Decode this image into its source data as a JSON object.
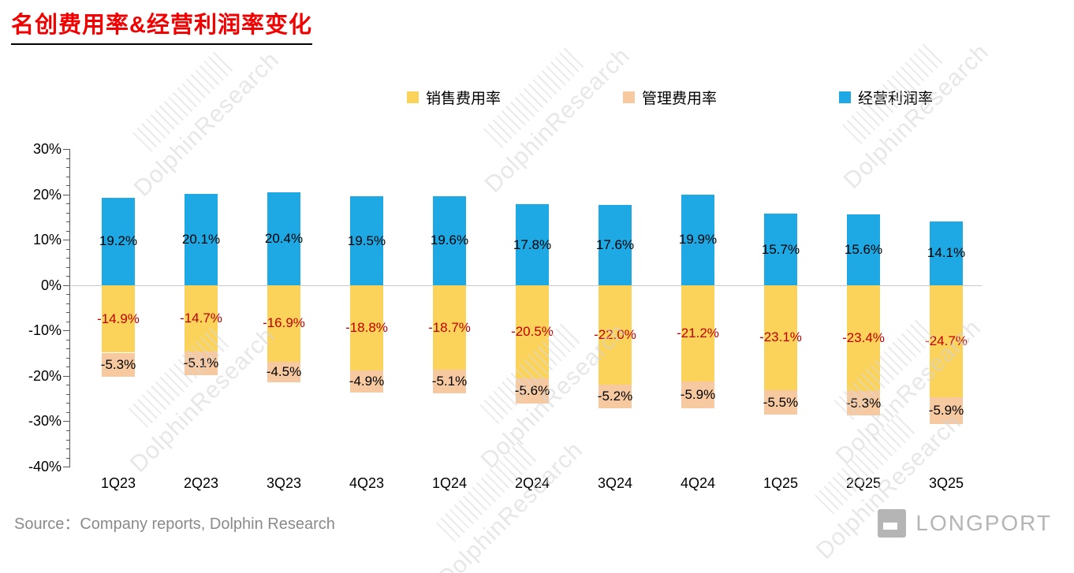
{
  "title": "名创费用率&经营利润率变化",
  "legend": [
    {
      "label": "销售费用率",
      "color": "#FBD35B"
    },
    {
      "label": "管理费用率",
      "color": "#F6C9A0"
    },
    {
      "label": "经营利润率",
      "color": "#1FA9E4"
    }
  ],
  "source": "Source：Company reports, Dolphin Research",
  "watermark_text": "DolphinResearch",
  "logo_text": "LONGPORT",
  "colors": {
    "title": "#F20000",
    "negative_label": "#C00000",
    "positive_label": "#000000",
    "zero_line": "#C9C9C9"
  },
  "chart_data": {
    "type": "bar",
    "stacked": true,
    "title": "名创费用率&经营利润率变化",
    "categories": [
      "1Q23",
      "2Q23",
      "3Q23",
      "4Q23",
      "1Q24",
      "2Q24",
      "3Q24",
      "4Q24",
      "1Q25",
      "2Q25",
      "3Q25"
    ],
    "series": [
      {
        "name": "经营利润率",
        "color": "#1FA9E4",
        "label_color": "#000000",
        "values": [
          19.2,
          20.1,
          20.4,
          19.5,
          19.6,
          17.8,
          17.6,
          19.9,
          15.7,
          15.6,
          14.1
        ]
      },
      {
        "name": "销售费用率",
        "color": "#FBD35B",
        "label_color": "#C00000",
        "values": [
          -14.9,
          -14.7,
          -16.9,
          -18.8,
          -18.7,
          -20.5,
          -22.0,
          -21.2,
          -23.1,
          -23.4,
          -24.7
        ]
      },
      {
        "name": "管理费用率",
        "color": "#F6C9A0",
        "label_color": "#000000",
        "values": [
          -5.3,
          -5.1,
          -4.5,
          -4.9,
          -5.1,
          -5.6,
          -5.2,
          -5.9,
          -5.5,
          -5.3,
          -5.9
        ]
      }
    ],
    "y_ticks": [
      "30%",
      "20%",
      "10%",
      "0%",
      "-10%",
      "-20%",
      "-30%",
      "-40%"
    ],
    "ylim": [
      -40,
      30
    ],
    "legend_position": "top",
    "grid": false
  }
}
